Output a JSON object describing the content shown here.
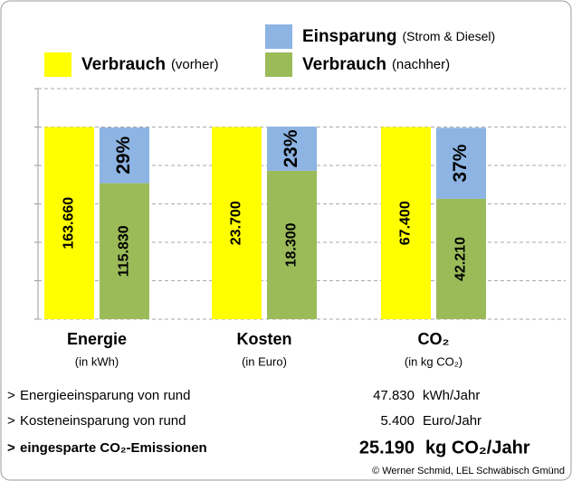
{
  "chart_data": {
    "type": "stacked-percent-bar",
    "categories": [
      "Energie",
      "Kosten",
      "CO₂"
    ],
    "category_units": [
      "(in kWh)",
      "(in Euro)",
      "(in kg CO₂)"
    ],
    "series": [
      {
        "name": "Verbrauch",
        "legend_note": "(vorher)",
        "color": "#ffff00",
        "values": [
          163660,
          23700,
          67400
        ],
        "value_labels": [
          "163.660",
          "23.700",
          "67.400"
        ]
      },
      {
        "name": "Verbrauch",
        "legend_note": "(nachher)",
        "color": "#9bbb59",
        "values": [
          115830,
          18300,
          42210
        ],
        "value_labels": [
          "115.830",
          "18.300",
          "42.210"
        ]
      },
      {
        "name": "Einsparung",
        "legend_note": "(Strom & Diesel)",
        "color": "#8db4e2",
        "values": [
          29,
          23,
          37
        ],
        "value_labels": [
          "29%",
          "23%",
          "37%"
        ]
      }
    ],
    "ylim": [
      0,
      120
    ],
    "yticks": [
      0,
      20,
      40,
      60,
      80,
      100,
      120
    ],
    "grid": true
  },
  "summary": [
    {
      "marker": ">",
      "label": "Energieeinsparung von rund",
      "value": "47.830",
      "unit": "kWh/Jahr"
    },
    {
      "marker": ">",
      "label": "Kosteneinsparung von rund",
      "value": "5.400",
      "unit": "Euro/Jahr"
    },
    {
      "marker": ">",
      "label": "eingesparte CO₂-Emissionen",
      "value": "25.190",
      "unit": "kg CO₂/Jahr"
    }
  ],
  "footer": "© Werner Schmid, LEL Schwäbisch Gmünd"
}
